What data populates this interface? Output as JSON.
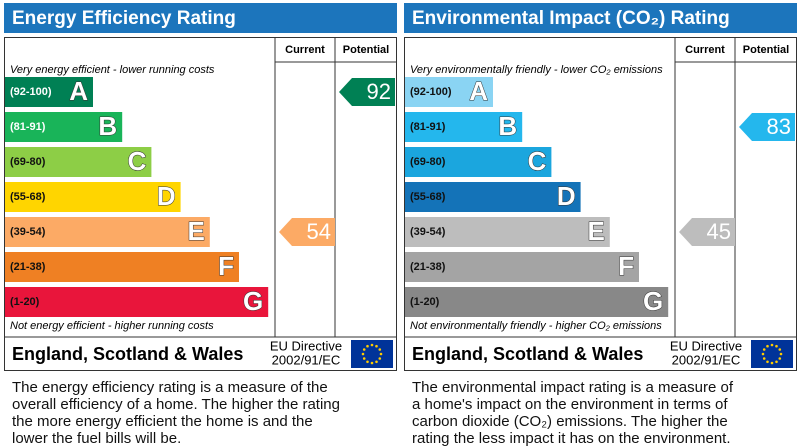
{
  "panels": [
    {
      "title": "Energy Efficiency Rating",
      "current_header": "Current",
      "potential_header": "Potential",
      "top_note": "Very energy efficient - lower running costs",
      "bands": [
        {
          "range": "(92-100)",
          "letter": "A",
          "color": "#008054"
        },
        {
          "range": "(81-91)",
          "letter": "B",
          "color": "#19b459"
        },
        {
          "range": "(69-80)",
          "letter": "C",
          "color": "#8dce46"
        },
        {
          "range": "(55-68)",
          "letter": "D",
          "color": "#ffd500"
        },
        {
          "range": "(39-54)",
          "letter": "E",
          "color": "#fcaa65"
        },
        {
          "range": "(21-38)",
          "letter": "F",
          "color": "#ef8023"
        },
        {
          "range": "(1-20)",
          "letter": "G",
          "color": "#e9153b"
        }
      ],
      "bottom_note": "Not energy efficient - higher running costs",
      "current": 54,
      "potential": 92,
      "region": "England, Scotland & Wales",
      "directive": "EU Directive",
      "directive_code": "2002/91/EC",
      "description": [
        "The energy efficiency rating is a measure of the",
        "overall efficiency of a home. The higher the rating",
        "the more energy efficient the home is and the",
        "lower the fuel bills will be."
      ]
    },
    {
      "title": "Environmental Impact (CO₂) Rating",
      "current_header": "Current",
      "potential_header": "Potential",
      "top_note": "Very environmentally friendly - lower CO₂ emissions",
      "bands": [
        {
          "range": "(92-100)",
          "letter": "A",
          "color": "#8ad4f3"
        },
        {
          "range": "(81-91)",
          "letter": "B",
          "color": "#24b7ed"
        },
        {
          "range": "(69-80)",
          "letter": "C",
          "color": "#1ba6de"
        },
        {
          "range": "(55-68)",
          "letter": "D",
          "color": "#1473b8"
        },
        {
          "range": "(39-54)",
          "letter": "E",
          "color": "#bdbdbd"
        },
        {
          "range": "(21-38)",
          "letter": "F",
          "color": "#a4a4a4"
        },
        {
          "range": "(1-20)",
          "letter": "G",
          "color": "#888888"
        }
      ],
      "bottom_note": "Not environmentally friendly - higher CO₂ emissions",
      "current": 45,
      "potential": 83,
      "region": "England, Scotland & Wales",
      "directive": "EU Directive",
      "directive_code": "2002/91/EC",
      "description": [
        "The environmental impact rating is a measure of",
        "a home's impact on the environment in terms of",
        "carbon dioxide (CO₂) emissions. The higher the",
        "rating the less impact it has on the environment."
      ]
    }
  ]
}
